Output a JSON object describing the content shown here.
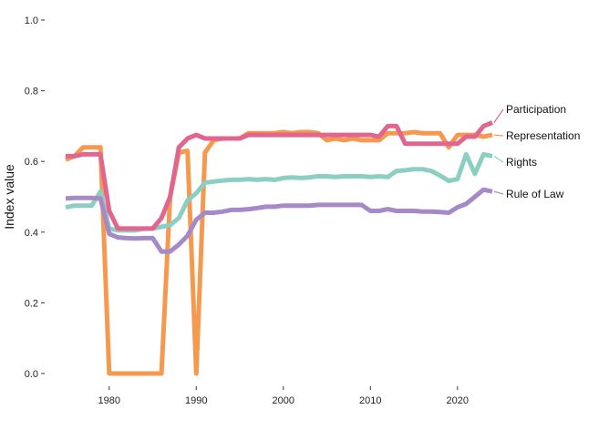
{
  "chart_data": {
    "type": "line",
    "title": "",
    "xlabel": "",
    "ylabel": "Index value",
    "xlim": [
      1975,
      2024
    ],
    "ylim": [
      0,
      1
    ],
    "x_ticks": [
      1980,
      1990,
      2000,
      2010,
      2020
    ],
    "y_ticks": [
      0.0,
      0.2,
      0.4,
      0.6,
      0.8,
      1.0
    ],
    "y_tick_labels": [
      "0.0",
      "0.2",
      "0.4",
      "0.6",
      "0.8",
      "1.0"
    ],
    "grid": false,
    "legend": "direct labels at line ends",
    "x": [
      1975,
      1976,
      1977,
      1978,
      1979,
      1980,
      1981,
      1982,
      1983,
      1984,
      1985,
      1986,
      1987,
      1988,
      1989,
      1990,
      1991,
      1992,
      1993,
      1994,
      1995,
      1996,
      1997,
      1998,
      1999,
      2000,
      2001,
      2002,
      2003,
      2004,
      2005,
      2006,
      2007,
      2008,
      2009,
      2010,
      2011,
      2012,
      2013,
      2014,
      2015,
      2016,
      2017,
      2018,
      2019,
      2020,
      2021,
      2022,
      2023,
      2024
    ],
    "series": [
      {
        "name": "Participation",
        "color": "#e0668f",
        "values": [
          0.615,
          0.615,
          0.62,
          0.62,
          0.62,
          0.46,
          0.41,
          0.41,
          0.41,
          0.41,
          0.41,
          0.44,
          0.5,
          0.64,
          0.665,
          0.675,
          0.665,
          0.665,
          0.665,
          0.665,
          0.665,
          0.675,
          0.675,
          0.675,
          0.675,
          0.675,
          0.675,
          0.675,
          0.675,
          0.675,
          0.675,
          0.675,
          0.675,
          0.675,
          0.675,
          0.675,
          0.67,
          0.7,
          0.7,
          0.65,
          0.65,
          0.65,
          0.65,
          0.65,
          0.65,
          0.65,
          0.67,
          0.67,
          0.7,
          0.71
        ]
      },
      {
        "name": "Representation",
        "color": "#f5994f",
        "values": [
          0.605,
          0.615,
          0.64,
          0.64,
          0.64,
          0.0,
          0.0,
          0.0,
          0.0,
          0.0,
          0.0,
          0.0,
          0.5,
          0.625,
          0.63,
          0.0,
          0.625,
          0.66,
          0.665,
          0.665,
          0.665,
          0.68,
          0.68,
          0.68,
          0.68,
          0.683,
          0.68,
          0.683,
          0.683,
          0.68,
          0.66,
          0.665,
          0.66,
          0.665,
          0.66,
          0.66,
          0.66,
          0.68,
          0.68,
          0.68,
          0.683,
          0.68,
          0.68,
          0.68,
          0.64,
          0.675,
          0.675,
          0.675,
          0.67,
          0.675
        ]
      },
      {
        "name": "Rights",
        "color": "#8ccfc2",
        "values": [
          0.47,
          0.475,
          0.475,
          0.475,
          0.515,
          0.41,
          0.405,
          0.405,
          0.405,
          0.41,
          0.41,
          0.415,
          0.42,
          0.44,
          0.49,
          0.51,
          0.54,
          0.543,
          0.546,
          0.548,
          0.548,
          0.55,
          0.548,
          0.55,
          0.548,
          0.553,
          0.555,
          0.553,
          0.555,
          0.558,
          0.558,
          0.556,
          0.558,
          0.558,
          0.558,
          0.556,
          0.558,
          0.556,
          0.573,
          0.575,
          0.578,
          0.578,
          0.573,
          0.56,
          0.545,
          0.55,
          0.62,
          0.565,
          0.62,
          0.615
        ]
      },
      {
        "name": "Rule of Law",
        "color": "#a68ac8",
        "values": [
          0.495,
          0.497,
          0.497,
          0.497,
          0.495,
          0.395,
          0.385,
          0.383,
          0.382,
          0.383,
          0.383,
          0.345,
          0.345,
          0.365,
          0.39,
          0.435,
          0.455,
          0.455,
          0.458,
          0.463,
          0.463,
          0.465,
          0.468,
          0.472,
          0.472,
          0.475,
          0.475,
          0.475,
          0.475,
          0.477,
          0.477,
          0.477,
          0.477,
          0.477,
          0.477,
          0.46,
          0.46,
          0.465,
          0.46,
          0.46,
          0.46,
          0.458,
          0.458,
          0.457,
          0.455,
          0.47,
          0.48,
          0.5,
          0.52,
          0.515
        ]
      }
    ]
  }
}
